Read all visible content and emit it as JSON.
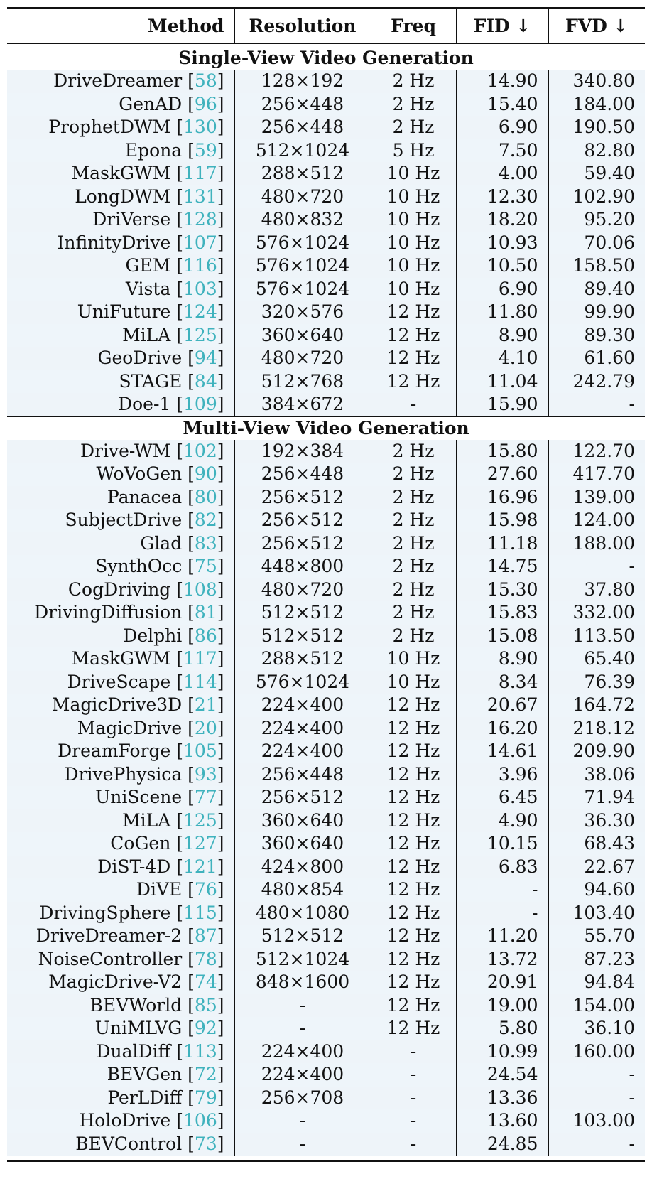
{
  "header": {
    "method": "Method",
    "resolution": "Resolution",
    "freq": "Freq",
    "fid": "FID ↓",
    "fvd": "FVD ↓"
  },
  "sections": [
    {
      "title": "Single-View Video Generation",
      "rows": [
        {
          "method": "DriveDreamer",
          "ref": "58",
          "res": "128×192",
          "freq": "2 Hz",
          "fid": "14.90",
          "fvd": "340.80"
        },
        {
          "method": "GenAD",
          "ref": "96",
          "res": "256×448",
          "freq": "2 Hz",
          "fid": "15.40",
          "fvd": "184.00"
        },
        {
          "method": "ProphetDWM",
          "ref": "130",
          "res": "256×448",
          "freq": "2 Hz",
          "fid": "6.90",
          "fvd": "190.50"
        },
        {
          "method": "Epona",
          "ref": "59",
          "res": "512×1024",
          "freq": "5 Hz",
          "fid": "7.50",
          "fvd": "82.80"
        },
        {
          "method": "MaskGWM",
          "ref": "117",
          "res": "288×512",
          "freq": "10 Hz",
          "fid": "4.00",
          "fvd": "59.40"
        },
        {
          "method": "LongDWM",
          "ref": "131",
          "res": "480×720",
          "freq": "10 Hz",
          "fid": "12.30",
          "fvd": "102.90"
        },
        {
          "method": "DriVerse",
          "ref": "128",
          "res": "480×832",
          "freq": "10 Hz",
          "fid": "18.20",
          "fvd": "95.20"
        },
        {
          "method": "InfinityDrive",
          "ref": "107",
          "res": "576×1024",
          "freq": "10 Hz",
          "fid": "10.93",
          "fvd": "70.06"
        },
        {
          "method": "GEM",
          "ref": "116",
          "res": "576×1024",
          "freq": "10 Hz",
          "fid": "10.50",
          "fvd": "158.50"
        },
        {
          "method": "Vista",
          "ref": "103",
          "res": "576×1024",
          "freq": "10 Hz",
          "fid": "6.90",
          "fvd": "89.40"
        },
        {
          "method": "UniFuture",
          "ref": "124",
          "res": "320×576",
          "freq": "12 Hz",
          "fid": "11.80",
          "fvd": "99.90"
        },
        {
          "method": "MiLA",
          "ref": "125",
          "res": "360×640",
          "freq": "12 Hz",
          "fid": "8.90",
          "fvd": "89.30"
        },
        {
          "method": "GeoDrive",
          "ref": "94",
          "res": "480×720",
          "freq": "12 Hz",
          "fid": "4.10",
          "fvd": "61.60"
        },
        {
          "method": "STAGE",
          "ref": "84",
          "res": "512×768",
          "freq": "12 Hz",
          "fid": "11.04",
          "fvd": "242.79"
        },
        {
          "method": "Doe-1",
          "ref": "109",
          "res": "384×672",
          "freq": "-",
          "fid": "15.90",
          "fvd": "-"
        }
      ]
    },
    {
      "title": "Multi-View Video Generation",
      "rows": [
        {
          "method": "Drive-WM",
          "ref": "102",
          "res": "192×384",
          "freq": "2 Hz",
          "fid": "15.80",
          "fvd": "122.70"
        },
        {
          "method": "WoVoGen",
          "ref": "90",
          "res": "256×448",
          "freq": "2 Hz",
          "fid": "27.60",
          "fvd": "417.70"
        },
        {
          "method": "Panacea",
          "ref": "80",
          "res": "256×512",
          "freq": "2 Hz",
          "fid": "16.96",
          "fvd": "139.00"
        },
        {
          "method": "SubjectDrive",
          "ref": "82",
          "res": "256×512",
          "freq": "2 Hz",
          "fid": "15.98",
          "fvd": "124.00"
        },
        {
          "method": "Glad",
          "ref": "83",
          "res": "256×512",
          "freq": "2 Hz",
          "fid": "11.18",
          "fvd": "188.00"
        },
        {
          "method": "SynthOcc",
          "ref": "75",
          "res": "448×800",
          "freq": "2 Hz",
          "fid": "14.75",
          "fvd": "-"
        },
        {
          "method": "CogDriving",
          "ref": "108",
          "res": "480×720",
          "freq": "2 Hz",
          "fid": "15.30",
          "fvd": "37.80"
        },
        {
          "method": "DrivingDiffusion",
          "ref": "81",
          "res": "512×512",
          "freq": "2 Hz",
          "fid": "15.83",
          "fvd": "332.00"
        },
        {
          "method": "Delphi",
          "ref": "86",
          "res": "512×512",
          "freq": "2 Hz",
          "fid": "15.08",
          "fvd": "113.50"
        },
        {
          "method": "MaskGWM",
          "ref": "117",
          "res": "288×512",
          "freq": "10 Hz",
          "fid": "8.90",
          "fvd": "65.40"
        },
        {
          "method": "DriveScape",
          "ref": "114",
          "res": "576×1024",
          "freq": "10 Hz",
          "fid": "8.34",
          "fvd": "76.39"
        },
        {
          "method": "MagicDrive3D",
          "ref": "21",
          "res": "224×400",
          "freq": "12 Hz",
          "fid": "20.67",
          "fvd": "164.72"
        },
        {
          "method": "MagicDrive",
          "ref": "20",
          "res": "224×400",
          "freq": "12 Hz",
          "fid": "16.20",
          "fvd": "218.12"
        },
        {
          "method": "DreamForge",
          "ref": "105",
          "res": "224×400",
          "freq": "12 Hz",
          "fid": "14.61",
          "fvd": "209.90"
        },
        {
          "method": "DrivePhysica",
          "ref": "93",
          "res": "256×448",
          "freq": "12 Hz",
          "fid": "3.96",
          "fvd": "38.06"
        },
        {
          "method": "UniScene",
          "ref": "77",
          "res": "256×512",
          "freq": "12 Hz",
          "fid": "6.45",
          "fvd": "71.94"
        },
        {
          "method": "MiLA",
          "ref": "125",
          "res": "360×640",
          "freq": "12 Hz",
          "fid": "4.90",
          "fvd": "36.30"
        },
        {
          "method": "CoGen",
          "ref": "127",
          "res": "360×640",
          "freq": "12 Hz",
          "fid": "10.15",
          "fvd": "68.43"
        },
        {
          "method": "DiST-4D",
          "ref": "121",
          "res": "424×800",
          "freq": "12 Hz",
          "fid": "6.83",
          "fvd": "22.67"
        },
        {
          "method": "DiVE",
          "ref": "76",
          "res": "480×854",
          "freq": "12 Hz",
          "fid": "-",
          "fvd": "94.60"
        },
        {
          "method": "DrivingSphere",
          "ref": "115",
          "res": "480×1080",
          "freq": "12 Hz",
          "fid": "-",
          "fvd": "103.40"
        },
        {
          "method": "DriveDreamer-2",
          "ref": "87",
          "res": "512×512",
          "freq": "12 Hz",
          "fid": "11.20",
          "fvd": "55.70"
        },
        {
          "method": "NoiseController",
          "ref": "78",
          "res": "512×1024",
          "freq": "12 Hz",
          "fid": "13.72",
          "fvd": "87.23"
        },
        {
          "method": "MagicDrive-V2",
          "ref": "74",
          "res": "848×1600",
          "freq": "12 Hz",
          "fid": "20.91",
          "fvd": "94.84"
        },
        {
          "method": "BEVWorld",
          "ref": "85",
          "res": "-",
          "freq": "12 Hz",
          "fid": "19.00",
          "fvd": "154.00"
        },
        {
          "method": "UniMLVG",
          "ref": "92",
          "res": "-",
          "freq": "12 Hz",
          "fid": "5.80",
          "fvd": "36.10"
        },
        {
          "method": "DualDiff",
          "ref": "113",
          "res": "224×400",
          "freq": "-",
          "fid": "10.99",
          "fvd": "160.00"
        },
        {
          "method": "BEVGen",
          "ref": "72",
          "res": "224×400",
          "freq": "-",
          "fid": "24.54",
          "fvd": "-"
        },
        {
          "method": "PerLDiff",
          "ref": "79",
          "res": "256×708",
          "freq": "-",
          "fid": "13.36",
          "fvd": "-"
        },
        {
          "method": "HoloDrive",
          "ref": "106",
          "res": "-",
          "freq": "-",
          "fid": "13.60",
          "fvd": "103.00"
        },
        {
          "method": "BEVControl",
          "ref": "73",
          "res": "-",
          "freq": "-",
          "fid": "24.85",
          "fvd": "-"
        }
      ]
    }
  ]
}
